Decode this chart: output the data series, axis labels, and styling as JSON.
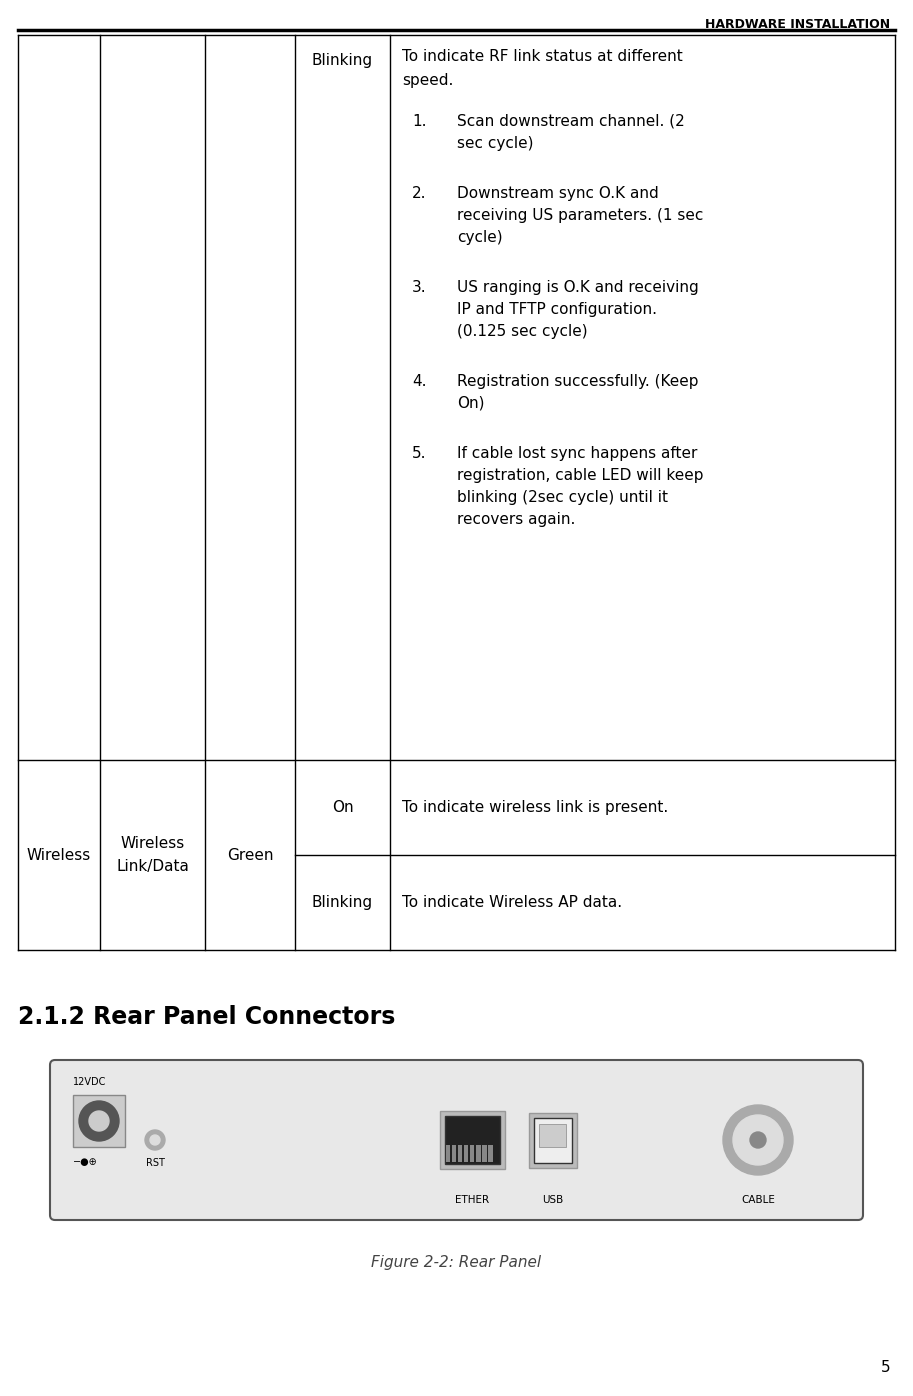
{
  "page_title": "HARDWARE INSTALLATION",
  "page_number": "5",
  "bg_color": "#ffffff",
  "blinking_col_text": "Blinking",
  "wireless_col1": "Wireless",
  "wireless_col2": "Wireless\nLink/Data",
  "wireless_col3": "Green",
  "wireless_on_text": "On",
  "wireless_on_desc": "To indicate wireless link is present.",
  "wireless_blink_text": "Blinking",
  "wireless_blink_desc": "To indicate Wireless AP data.",
  "section_title": "2.1.2 Rear Panel Connectors",
  "figure_caption": "Figure 2-2: Rear Panel",
  "desc_line1": "To indicate RF link status at different",
  "desc_line2": "speed.",
  "items": [
    [
      "1.",
      "Scan downstream channel. (2",
      "sec cycle)"
    ],
    [
      "2.",
      "Downstream sync O.K and",
      "receiving US parameters. (1 sec",
      "cycle)"
    ],
    [
      "3.",
      "US ranging is O.K and receiving",
      "IP and TFTP configuration.",
      "(0.125 sec cycle)"
    ],
    [
      "4.",
      "Registration successfully. (Keep",
      "On)"
    ],
    [
      "5.",
      "If cable lost sync happens after",
      "registration, cable LED will keep",
      "blinking (2sec cycle) until it",
      "recovers again."
    ]
  ]
}
